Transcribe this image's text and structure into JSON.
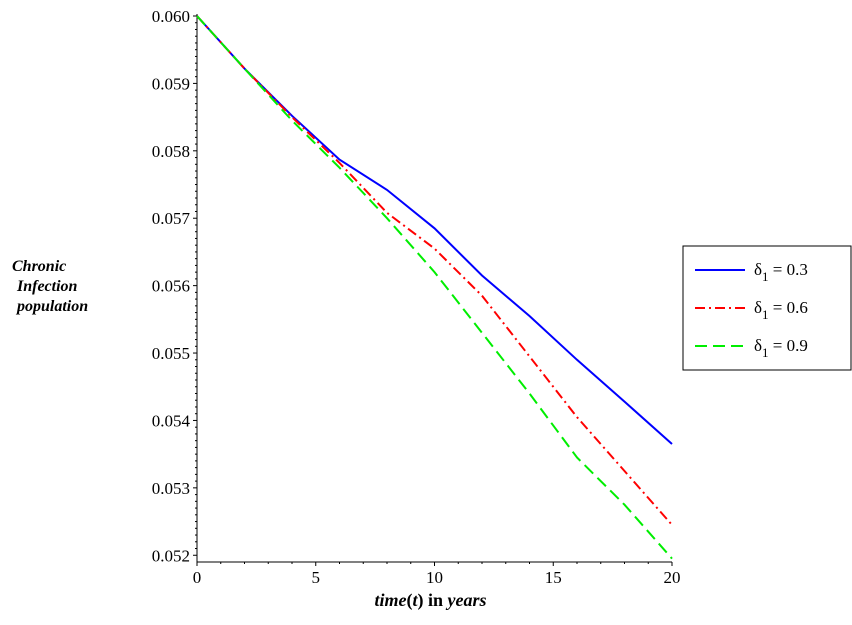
{
  "chart_data": {
    "type": "line",
    "xlabel": "time(t) in years",
    "xlabel_parts": [
      "time",
      "(",
      "t",
      ")",
      " in ",
      "years"
    ],
    "ylabel_lines": [
      "Chronic",
      "Infection",
      "population"
    ],
    "xlim": [
      0,
      20
    ],
    "ylim": [
      0.0519,
      0.06
    ],
    "x_ticks": [
      0,
      5,
      10,
      15,
      20
    ],
    "y_ticks": [
      0.052,
      0.053,
      0.054,
      0.055,
      0.056,
      0.057,
      0.058,
      0.059,
      0.06
    ],
    "y_tick_labels": [
      "0.052",
      "0.053",
      "0.054",
      "0.055",
      "0.056",
      "0.057",
      "0.058",
      "0.059",
      "0.060"
    ],
    "grid": false,
    "legend_placement": "right",
    "series": [
      {
        "name": "δ1 = 0.3",
        "color": "#0000ff",
        "dash": "solid",
        "x": [
          0,
          2,
          4,
          6,
          8,
          10,
          12,
          14,
          16,
          18,
          20
        ],
        "y": [
          0.06,
          0.05922,
          0.05852,
          0.05787,
          0.05742,
          0.05685,
          0.05615,
          0.05555,
          0.0549,
          0.05428,
          0.05365
        ]
      },
      {
        "name": "δ1 = 0.6",
        "color": "#ff0000",
        "dash": "dashdot",
        "x": [
          0,
          2,
          4,
          6,
          8,
          10,
          12,
          14,
          16,
          18,
          20
        ],
        "y": [
          0.06,
          0.05922,
          0.0585,
          0.05782,
          0.05708,
          0.05655,
          0.05585,
          0.05495,
          0.05405,
          0.05325,
          0.05245
        ]
      },
      {
        "name": "δ1 = 0.9",
        "color": "#00ee00",
        "dash": "dashed",
        "x": [
          0,
          2,
          4,
          6,
          8,
          10,
          12,
          14,
          16,
          18,
          20
        ],
        "y": [
          0.06,
          0.05922,
          0.05845,
          0.05775,
          0.057,
          0.0562,
          0.0553,
          0.0544,
          0.05345,
          0.05275,
          0.05195
        ]
      }
    ]
  }
}
